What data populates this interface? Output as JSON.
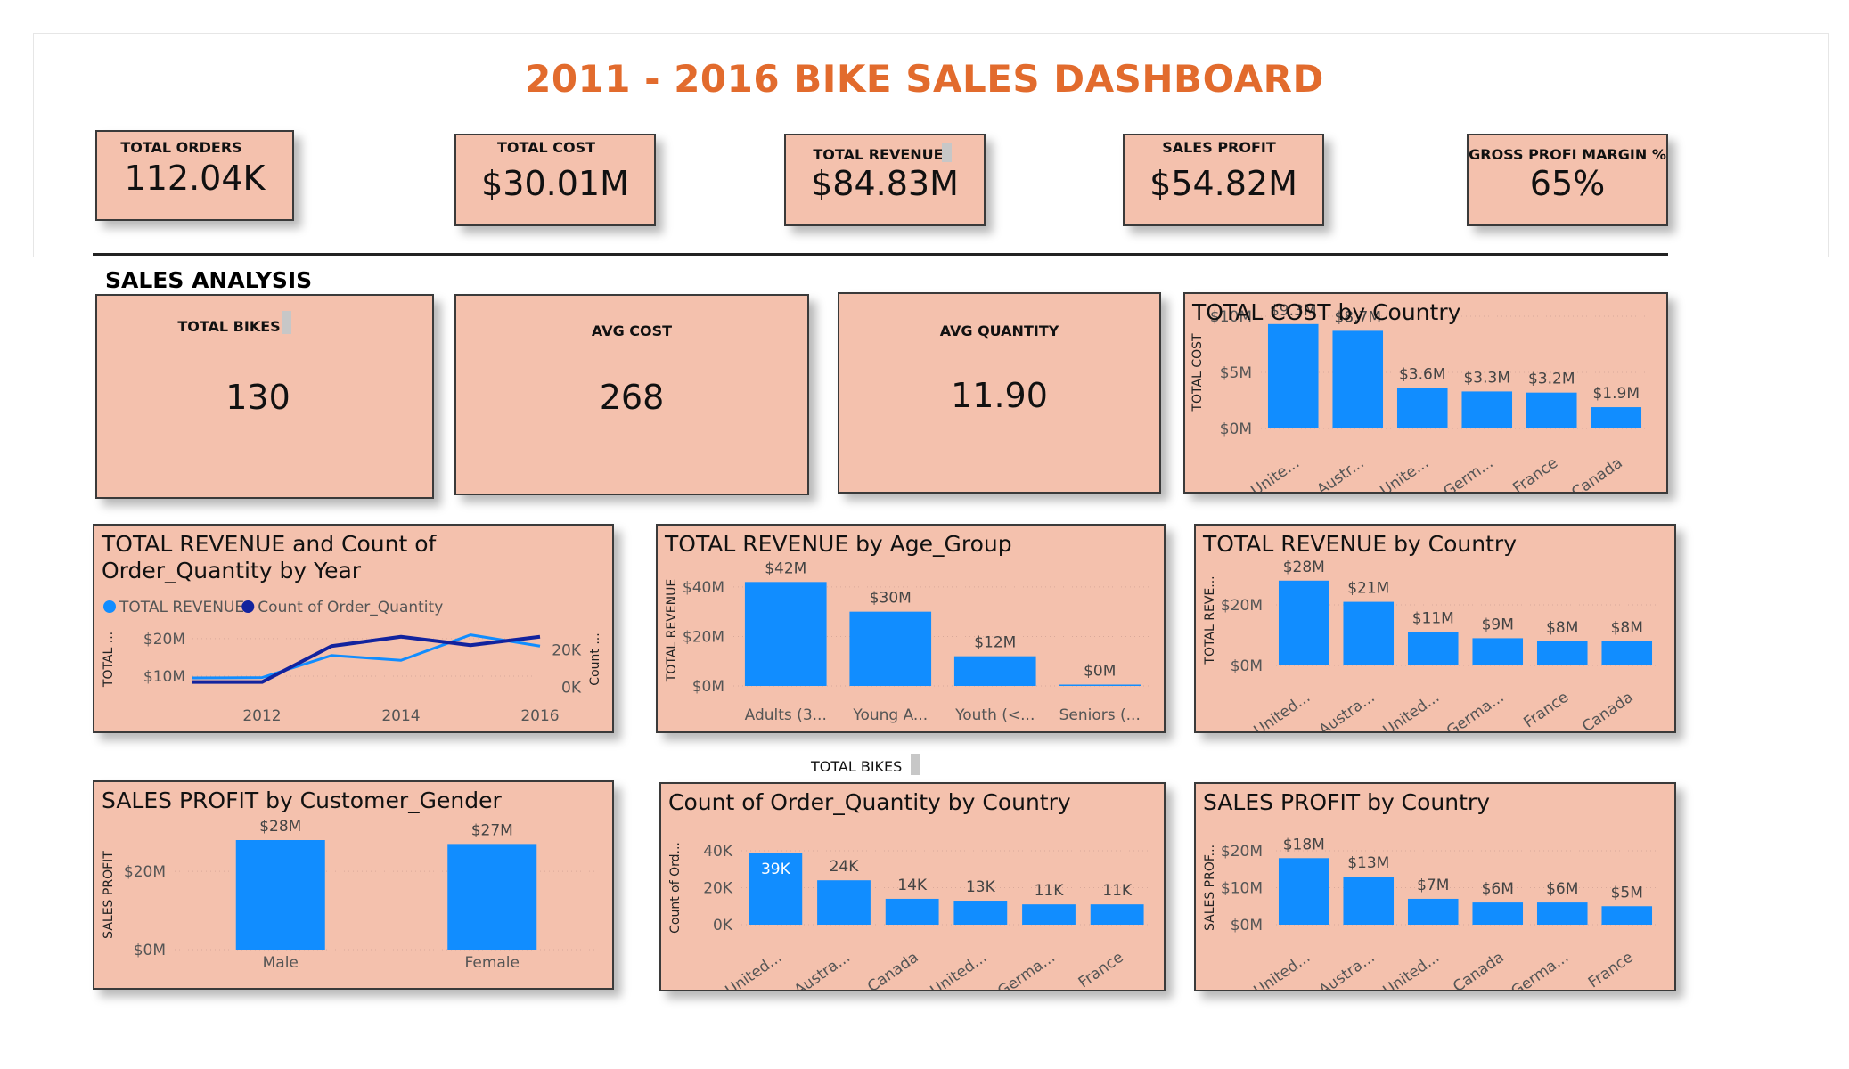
{
  "dashboard": {
    "title": "2011 - 2016 BIKE SALES DASHBOARD",
    "section_title": "SALES ANALYSIS",
    "floating_label": "TOTAL BIKES"
  },
  "kpis": {
    "total_orders": {
      "label": "TOTAL ORDERS",
      "value": "112.04K"
    },
    "total_cost": {
      "label": "TOTAL COST",
      "value": "$30.01M"
    },
    "total_revenue": {
      "label": "TOTAL REVENUE",
      "value": "$84.83M"
    },
    "sales_profit": {
      "label": "SALES PROFIT",
      "value": "$54.82M"
    },
    "gross_margin": {
      "label": "GROSS PROFI MARGIN %",
      "value": "65%"
    },
    "total_bikes": {
      "label": "TOTAL BIKES",
      "value": "130"
    },
    "avg_cost": {
      "label": "AVG COST",
      "value": "268"
    },
    "avg_quantity": {
      "label": "AVG QUANTITY",
      "value": "11.90"
    }
  },
  "colors": {
    "bar": "#118dff",
    "line_dark": "#12239e",
    "card_bg": "#f4c1ad",
    "title": "#e26b2d"
  },
  "chart_data": [
    {
      "id": "cost_by_country",
      "type": "bar",
      "title": "TOTAL COST by Country",
      "ylabel": "TOTAL COST",
      "categories": [
        "Unite...",
        "Austr...",
        "Unite...",
        "Germ...",
        "France",
        "Canada"
      ],
      "values": [
        9.3,
        8.7,
        3.6,
        3.3,
        3.2,
        1.9
      ],
      "data_labels": [
        "$9.3M",
        "$8.7M",
        "$3.6M",
        "$3.3M",
        "$3.2M",
        "$1.9M"
      ],
      "yticks": [
        0,
        5,
        10
      ],
      "ytick_labels": [
        "$0M",
        "$5M",
        "$10M"
      ],
      "ylim": [
        0,
        10
      ]
    },
    {
      "id": "revenue_orders_by_year",
      "type": "line",
      "title": "TOTAL REVENUE and Count of Order_Quantity by Year",
      "ylabel": "TOTAL ...",
      "y2label": "Count ...",
      "x": [
        2011,
        2012,
        2013,
        2014,
        2015,
        2016
      ],
      "xticks": [
        2012,
        2014,
        2016
      ],
      "series": [
        {
          "name": "TOTAL REVENUE",
          "axis": "left",
          "values": [
            9.5,
            9.6,
            15.5,
            14.2,
            21.0,
            18.0
          ]
        },
        {
          "name": "Count of Order_Quantity",
          "axis": "right",
          "values": [
            2800,
            2800,
            22000,
            27000,
            22500,
            27000
          ]
        }
      ],
      "yticks": [
        10,
        20
      ],
      "ytick_labels": [
        "$10M",
        "$20M"
      ],
      "ylim": [
        5,
        24
      ],
      "y2ticks": [
        0,
        20000
      ],
      "y2tick_labels": [
        "0K",
        "20K"
      ],
      "y2lim": [
        -4000,
        34000
      ]
    },
    {
      "id": "revenue_by_age",
      "type": "bar",
      "title": "TOTAL REVENUE by Age_Group",
      "ylabel": "TOTAL REVENUE",
      "categories": [
        "Adults (3...",
        "Young A...",
        "Youth (<...",
        "Seniors (..."
      ],
      "values": [
        42,
        30,
        12,
        0.3
      ],
      "data_labels": [
        "$42M",
        "$30M",
        "$12M",
        "$0M"
      ],
      "yticks": [
        0,
        20,
        40
      ],
      "ytick_labels": [
        "$0M",
        "$20M",
        "$40M"
      ],
      "ylim": [
        0,
        45
      ]
    },
    {
      "id": "revenue_by_country",
      "type": "bar",
      "title": "TOTAL REVENUE by Country",
      "ylabel": "TOTAL REVE...",
      "categories": [
        "United...",
        "Austra...",
        "United...",
        "Germa...",
        "France",
        "Canada"
      ],
      "values": [
        28,
        21,
        11,
        9,
        8,
        8
      ],
      "data_labels": [
        "$28M",
        "$21M",
        "$11M",
        "$9M",
        "$8M",
        "$8M"
      ],
      "yticks": [
        0,
        20
      ],
      "ytick_labels": [
        "$0M",
        "$20M"
      ],
      "ylim": [
        0,
        30
      ]
    },
    {
      "id": "profit_by_gender",
      "type": "bar",
      "title": "SALES PROFIT by Customer_Gender",
      "ylabel": "SALES PROFIT",
      "categories": [
        "Male",
        "Female"
      ],
      "values": [
        28,
        27
      ],
      "data_labels": [
        "$28M",
        "$27M"
      ],
      "yticks": [
        0,
        20
      ],
      "ytick_labels": [
        "$0M",
        "$20M"
      ],
      "ylim": [
        0,
        28
      ]
    },
    {
      "id": "orders_by_country",
      "type": "bar",
      "title": "Count of Order_Quantity by Country",
      "ylabel": "Count of Ord...",
      "categories": [
        "United...",
        "Austra...",
        "Canada",
        "United...",
        "Germa...",
        "France"
      ],
      "values": [
        39,
        24,
        14,
        13,
        11,
        11
      ],
      "data_labels": [
        "39K",
        "24K",
        "14K",
        "13K",
        "11K",
        "11K"
      ],
      "yticks": [
        0,
        20,
        40
      ],
      "ytick_labels": [
        "0K",
        "20K",
        "40K"
      ],
      "ylim": [
        0,
        40
      ]
    },
    {
      "id": "profit_by_country",
      "type": "bar",
      "title": "SALES PROFIT by Country",
      "ylabel": "SALES PROF...",
      "categories": [
        "United...",
        "Austra...",
        "United...",
        "Canada",
        "Germa...",
        "France"
      ],
      "values": [
        18,
        13,
        7,
        6,
        6,
        5
      ],
      "data_labels": [
        "$18M",
        "$13M",
        "$7M",
        "$6M",
        "$6M",
        "$5M"
      ],
      "yticks": [
        0,
        10,
        20
      ],
      "ytick_labels": [
        "$0M",
        "$10M",
        "$20M"
      ],
      "ylim": [
        0,
        20
      ]
    }
  ]
}
